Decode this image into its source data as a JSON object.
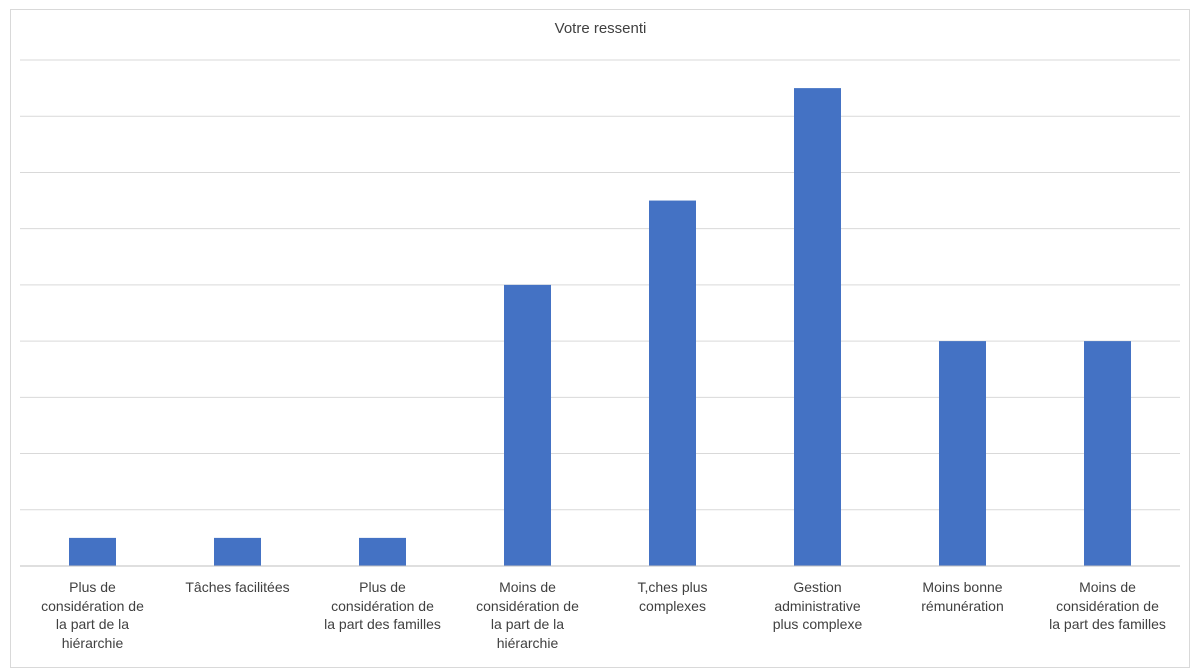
{
  "chart_data": {
    "type": "bar",
    "title": "Votre ressenti",
    "xlabel": "",
    "ylabel": "",
    "categories": [
      "Plus de considération de la part de la hiérarchie",
      "Tâches facilitées",
      "Plus de considération de la part des familles",
      "Moins de considération de la part de la hiérarchie",
      "T,ches plus complexes",
      "Gestion administrative plus complexe",
      "Moins bonne rémunération",
      "Moins de considération de la part des familles"
    ],
    "values": [
      0.5,
      0.5,
      0.5,
      5,
      6.5,
      8.5,
      4,
      4
    ],
    "ylim": [
      0,
      9
    ],
    "grid": true,
    "legend": "none",
    "bar_color": "#4472c4",
    "grid_color": "#d9d9d9",
    "axis_color": "#bfbfbf"
  },
  "labels_wrapped": [
    [
      "Plus de",
      "considération de",
      "la part de la",
      "hiérarchie"
    ],
    [
      "Tâches facilitées"
    ],
    [
      "Plus de",
      "considération de",
      "la part des familles"
    ],
    [
      "Moins de",
      "considération de",
      "la part de la",
      "hiérarchie"
    ],
    [
      "T,ches plus",
      "complexes"
    ],
    [
      "Gestion",
      "administrative",
      "plus complexe"
    ],
    [
      "Moins bonne",
      "rémunération"
    ],
    [
      "Moins de",
      "considération de",
      "la part des familles"
    ]
  ]
}
